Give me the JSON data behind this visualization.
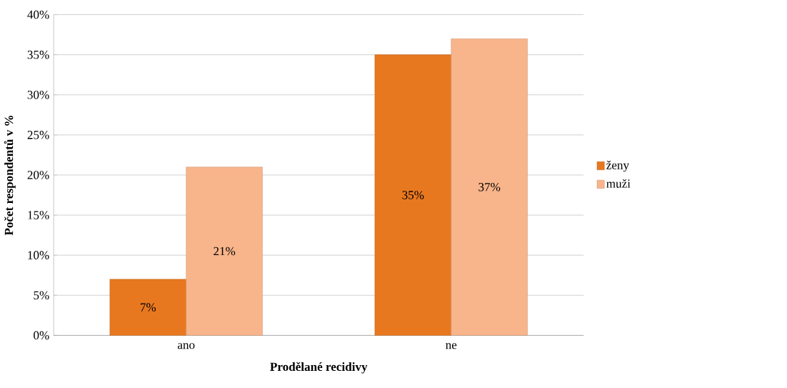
{
  "chart_data": {
    "type": "bar",
    "xlabel": "Prodělané recidivy",
    "ylabel": "Počet respondentů v %",
    "categories": [
      "ano",
      "ne"
    ],
    "series": [
      {
        "name": "ženy",
        "color": "#e8781f",
        "values": [
          7,
          35
        ],
        "value_labels": [
          "7%",
          "35%"
        ]
      },
      {
        "name": "muži",
        "color": "#f8b48a",
        "values": [
          21,
          37
        ],
        "value_labels": [
          "21%",
          "37%"
        ]
      }
    ],
    "ylim": [
      0,
      40
    ],
    "yticks": [
      {
        "value": 0,
        "label": "0%"
      },
      {
        "value": 5,
        "label": "5%"
      },
      {
        "value": 10,
        "label": "10%"
      },
      {
        "value": 15,
        "label": "15%"
      },
      {
        "value": 20,
        "label": "20%"
      },
      {
        "value": 25,
        "label": "25%"
      },
      {
        "value": 30,
        "label": "30%"
      },
      {
        "value": 35,
        "label": "35%"
      },
      {
        "value": 40,
        "label": "40%"
      }
    ],
    "grid": "y",
    "legend": "right"
  }
}
